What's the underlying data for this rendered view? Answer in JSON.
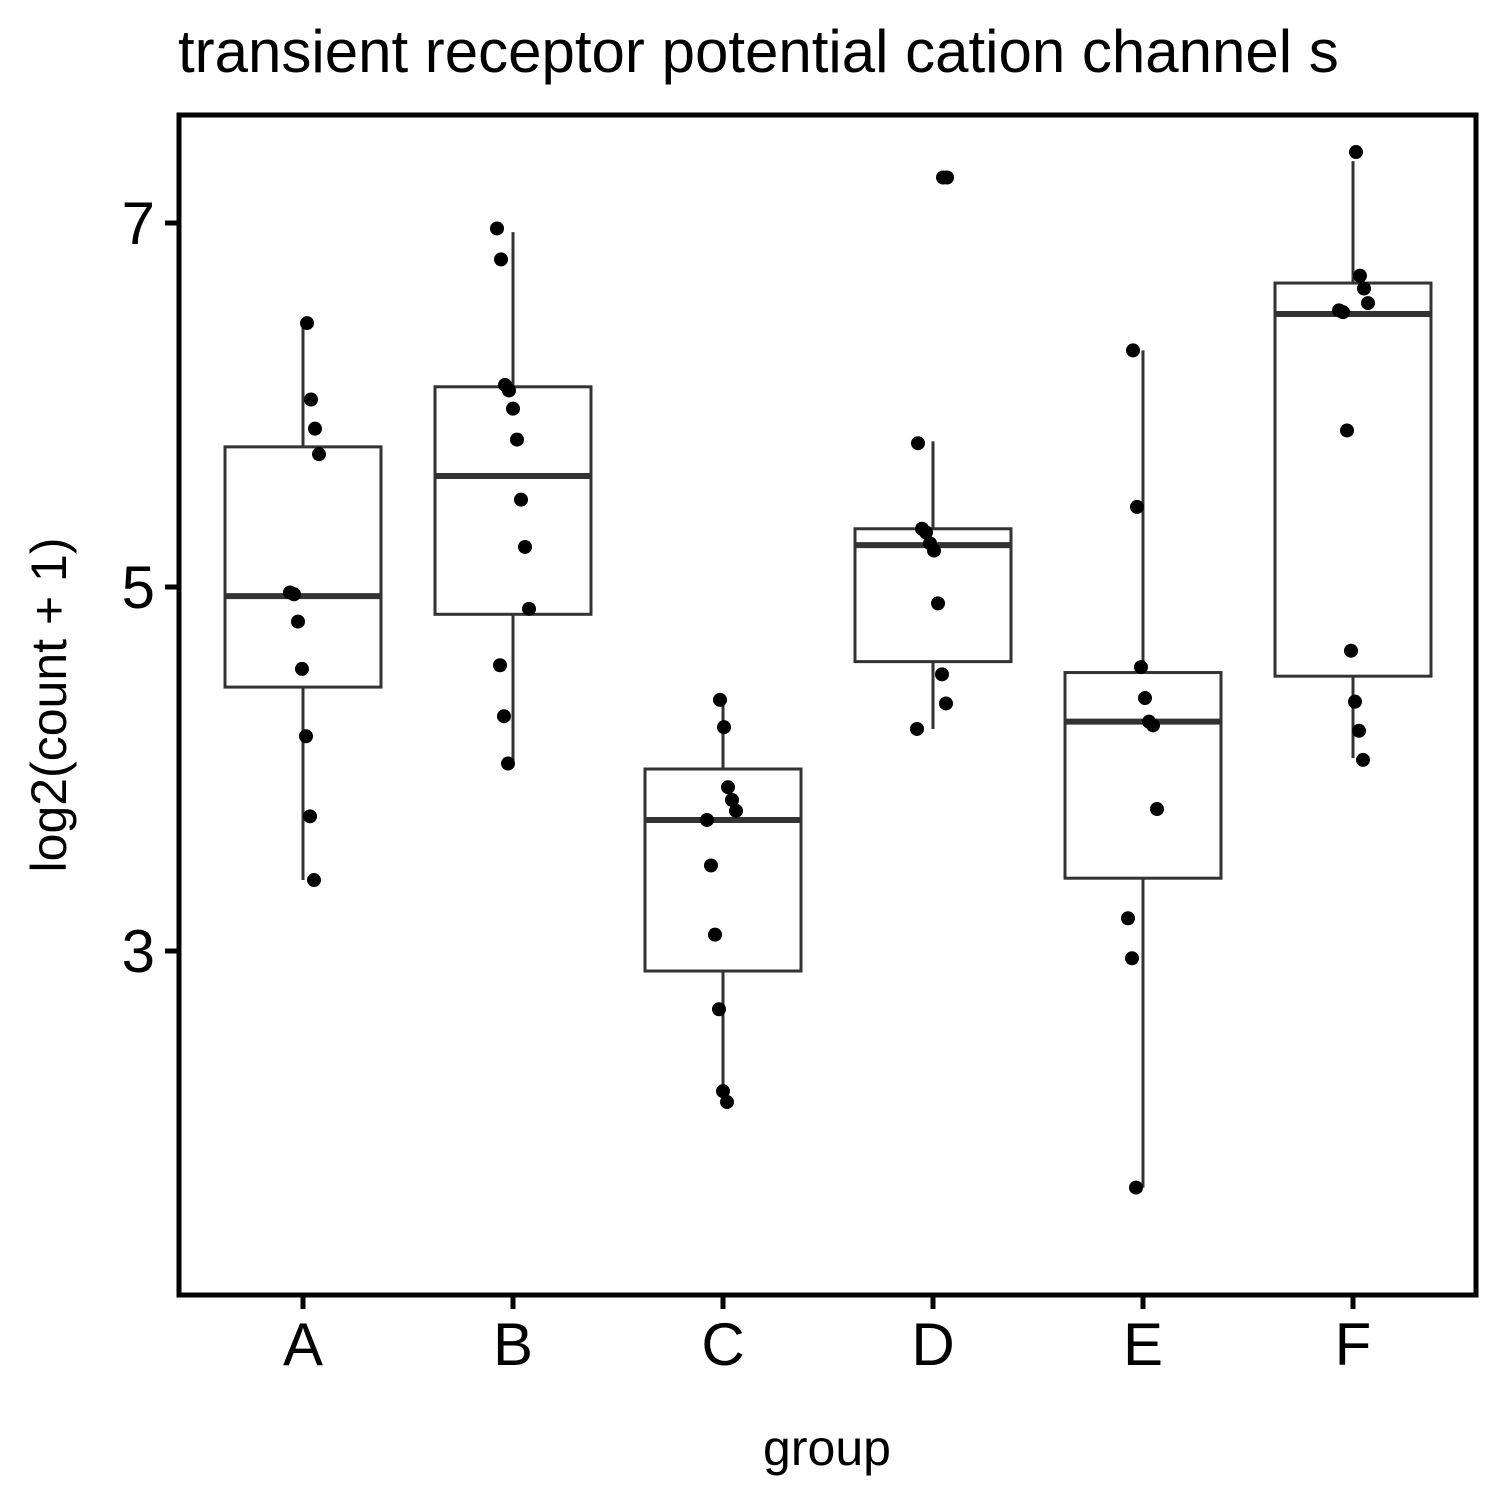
{
  "chart_data": {
    "type": "boxplot",
    "title": "transient receptor potential cation channel s",
    "xlabel": "group",
    "ylabel": "log2(count + 1)",
    "ylim": [
      1.5,
      7.6
    ],
    "y_ticks": [
      3,
      5,
      7
    ],
    "grid": false,
    "categories": [
      "A",
      "B",
      "C",
      "D",
      "E",
      "F"
    ],
    "boxes": [
      {
        "group": "A",
        "whisker_low": 3.39,
        "q1": 4.45,
        "median": 4.95,
        "q3": 5.77,
        "whisker_high": 6.45
      },
      {
        "group": "B",
        "whisker_low": 4.03,
        "q1": 4.85,
        "median": 5.61,
        "q3": 6.1,
        "whisker_high": 6.95
      },
      {
        "group": "C",
        "whisker_low": 2.17,
        "q1": 2.89,
        "median": 3.72,
        "q3": 4.0,
        "whisker_high": 4.38
      },
      {
        "group": "D",
        "whisker_low": 4.22,
        "q1": 4.59,
        "median": 5.23,
        "q3": 5.32,
        "whisker_high": 5.8
      },
      {
        "group": "E",
        "whisker_low": 1.7,
        "q1": 3.4,
        "median": 4.26,
        "q3": 4.53,
        "whisker_high": 6.3
      },
      {
        "group": "F",
        "whisker_low": 4.06,
        "q1": 4.51,
        "median": 6.5,
        "q3": 6.67,
        "whisker_high": 7.34
      }
    ],
    "points": [
      {
        "group": "A",
        "y": [
          6.45,
          6.03,
          5.87,
          5.73,
          4.97,
          4.96,
          4.81,
          4.55,
          4.18,
          3.74,
          3.39
        ]
      },
      {
        "group": "B",
        "y": [
          6.97,
          6.8,
          6.11,
          6.08,
          5.98,
          5.81,
          5.48,
          5.22,
          4.88,
          4.57,
          4.29,
          4.03
        ]
      },
      {
        "group": "C",
        "y": [
          4.38,
          4.23,
          3.9,
          3.83,
          3.77,
          3.72,
          3.47,
          3.09,
          2.68,
          2.23,
          2.17
        ]
      },
      {
        "group": "D",
        "y": [
          7.25,
          7.25,
          5.79,
          5.32,
          5.3,
          5.24,
          5.2,
          4.91,
          4.52,
          4.36,
          4.22
        ]
      },
      {
        "group": "E",
        "y": [
          6.3,
          5.44,
          4.56,
          4.39,
          4.26,
          4.24,
          3.78,
          3.18,
          2.96,
          1.7
        ]
      },
      {
        "group": "F",
        "y": [
          7.39,
          6.71,
          6.64,
          6.56,
          6.52,
          6.51,
          5.86,
          4.65,
          4.37,
          4.21,
          4.05
        ]
      }
    ],
    "colors": {
      "box_stroke": "#333333",
      "point": "#000000",
      "panel_border": "#000000",
      "background": "#ffffff"
    }
  }
}
